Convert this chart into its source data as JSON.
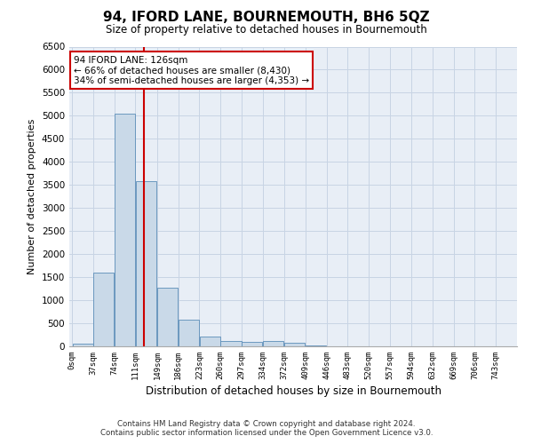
{
  "title": "94, IFORD LANE, BOURNEMOUTH, BH6 5QZ",
  "subtitle": "Size of property relative to detached houses in Bournemouth",
  "xlabel": "Distribution of detached houses by size in Bournemouth",
  "ylabel": "Number of detached properties",
  "footer_line1": "Contains HM Land Registry data © Crown copyright and database right 2024.",
  "footer_line2": "Contains public sector information licensed under the Open Government Licence v3.0.",
  "property_size": 126,
  "property_line_label": "94 IFORD LANE: 126sqm",
  "annotation_line1": "← 66% of detached houses are smaller (8,430)",
  "annotation_line2": "34% of semi-detached houses are larger (4,353) →",
  "bar_color": "#c9d9e8",
  "bar_edge_color": "#5b8db8",
  "vline_color": "#cc0000",
  "annotation_box_color": "#cc0000",
  "grid_color": "#c8d4e4",
  "background_color": "#e8eef6",
  "bin_labels": [
    "0sqm",
    "37sqm",
    "74sqm",
    "111sqm",
    "149sqm",
    "186sqm",
    "223sqm",
    "260sqm",
    "297sqm",
    "334sqm",
    "372sqm",
    "409sqm",
    "446sqm",
    "483sqm",
    "520sqm",
    "557sqm",
    "594sqm",
    "632sqm",
    "669sqm",
    "706sqm",
    "743sqm"
  ],
  "bin_edges": [
    0,
    37,
    74,
    111,
    149,
    186,
    223,
    260,
    297,
    334,
    372,
    409,
    446,
    483,
    520,
    557,
    594,
    632,
    669,
    706,
    743
  ],
  "bar_heights": [
    55,
    1600,
    5050,
    3580,
    1280,
    570,
    215,
    115,
    100,
    125,
    75,
    12,
    5,
    0,
    0,
    0,
    0,
    0,
    0,
    0
  ],
  "ylim": [
    0,
    6500
  ],
  "yticks": [
    0,
    500,
    1000,
    1500,
    2000,
    2500,
    3000,
    3500,
    4000,
    4500,
    5000,
    5500,
    6000,
    6500
  ]
}
